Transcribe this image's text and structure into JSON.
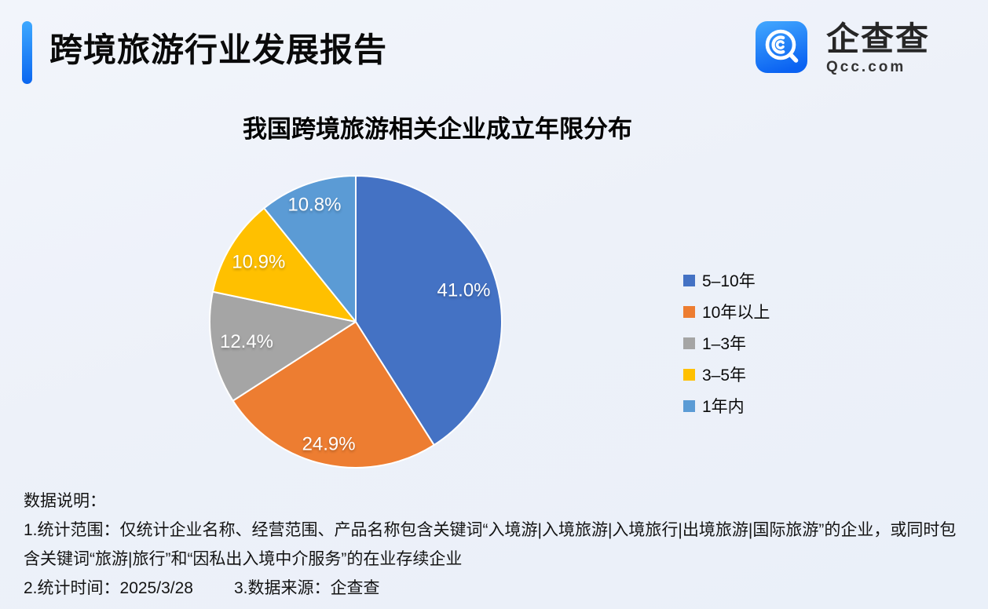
{
  "header": {
    "title": "跨境旅游行业发展报告",
    "brand": {
      "name": "企查查",
      "domain": "Qcc.com"
    }
  },
  "chart_data": {
    "type": "pie",
    "title": "我国跨境旅游相关企业成立年限分布",
    "unit": "%",
    "start_angle_deg": 0,
    "direction": "clockwise",
    "legend_position": "right",
    "slices": [
      {
        "label": "5–10年",
        "value": 41.0,
        "display": "41.0%",
        "color": "#4472C4"
      },
      {
        "label": "10年以上",
        "value": 24.9,
        "display": "24.9%",
        "color": "#ED7D31"
      },
      {
        "label": "1–3年",
        "value": 12.4,
        "display": "12.4%",
        "color": "#A5A5A5"
      },
      {
        "label": "3–5年",
        "value": 10.9,
        "display": "10.9%",
        "color": "#FFC000"
      },
      {
        "label": "1年内",
        "value": 10.8,
        "display": "10.8%",
        "color": "#5B9BD5"
      }
    ]
  },
  "notes": {
    "heading": "数据说明：",
    "scope": "1.统计范围：仅统计企业名称、经营范围、产品名称包含关键词“入境游|入境旅游|入境旅行|出境旅游|国际旅游”的企业，或同时包含关键词“旅游|旅行”和“因私出入境中介服务”的在业存续企业",
    "stat_time": "2.统计时间：2025/3/28",
    "data_source": "3.数据来源：企查查"
  },
  "colors": {
    "accent_top": "#3da8ff",
    "accent_bottom": "#0b66f0",
    "background": "#edf1f9",
    "label_text": "#ffffff"
  }
}
